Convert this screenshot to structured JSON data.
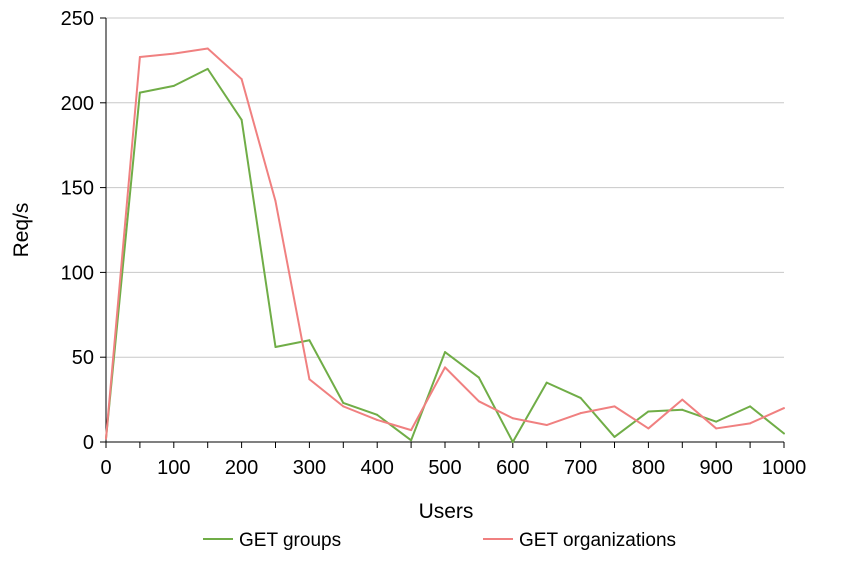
{
  "chart_data": {
    "type": "line",
    "xlabel": "Users",
    "ylabel": "Req/s",
    "xlim": [
      0,
      1000
    ],
    "ylim": [
      0,
      250
    ],
    "x_ticks": [
      0,
      100,
      200,
      300,
      400,
      500,
      600,
      700,
      800,
      900,
      1000
    ],
    "y_ticks": [
      0,
      50,
      100,
      150,
      200,
      250
    ],
    "grid": "horizontal",
    "legend_position": "bottom",
    "x": [
      0,
      50,
      100,
      150,
      200,
      250,
      300,
      350,
      400,
      450,
      500,
      550,
      600,
      650,
      700,
      750,
      800,
      850,
      900,
      950,
      1000
    ],
    "series": [
      {
        "name": "GET groups",
        "color": "#70ad47",
        "values": [
          2,
          206,
          210,
          220,
          190,
          56,
          60,
          23,
          16,
          1,
          53,
          38,
          0,
          35,
          26,
          3,
          18,
          19,
          12,
          21,
          5
        ]
      },
      {
        "name": "GET organizations",
        "color": "#f08080",
        "values": [
          2,
          227,
          229,
          232,
          214,
          142,
          37,
          21,
          13,
          7,
          44,
          24,
          14,
          10,
          17,
          21,
          8,
          25,
          8,
          11,
          20
        ]
      }
    ]
  }
}
